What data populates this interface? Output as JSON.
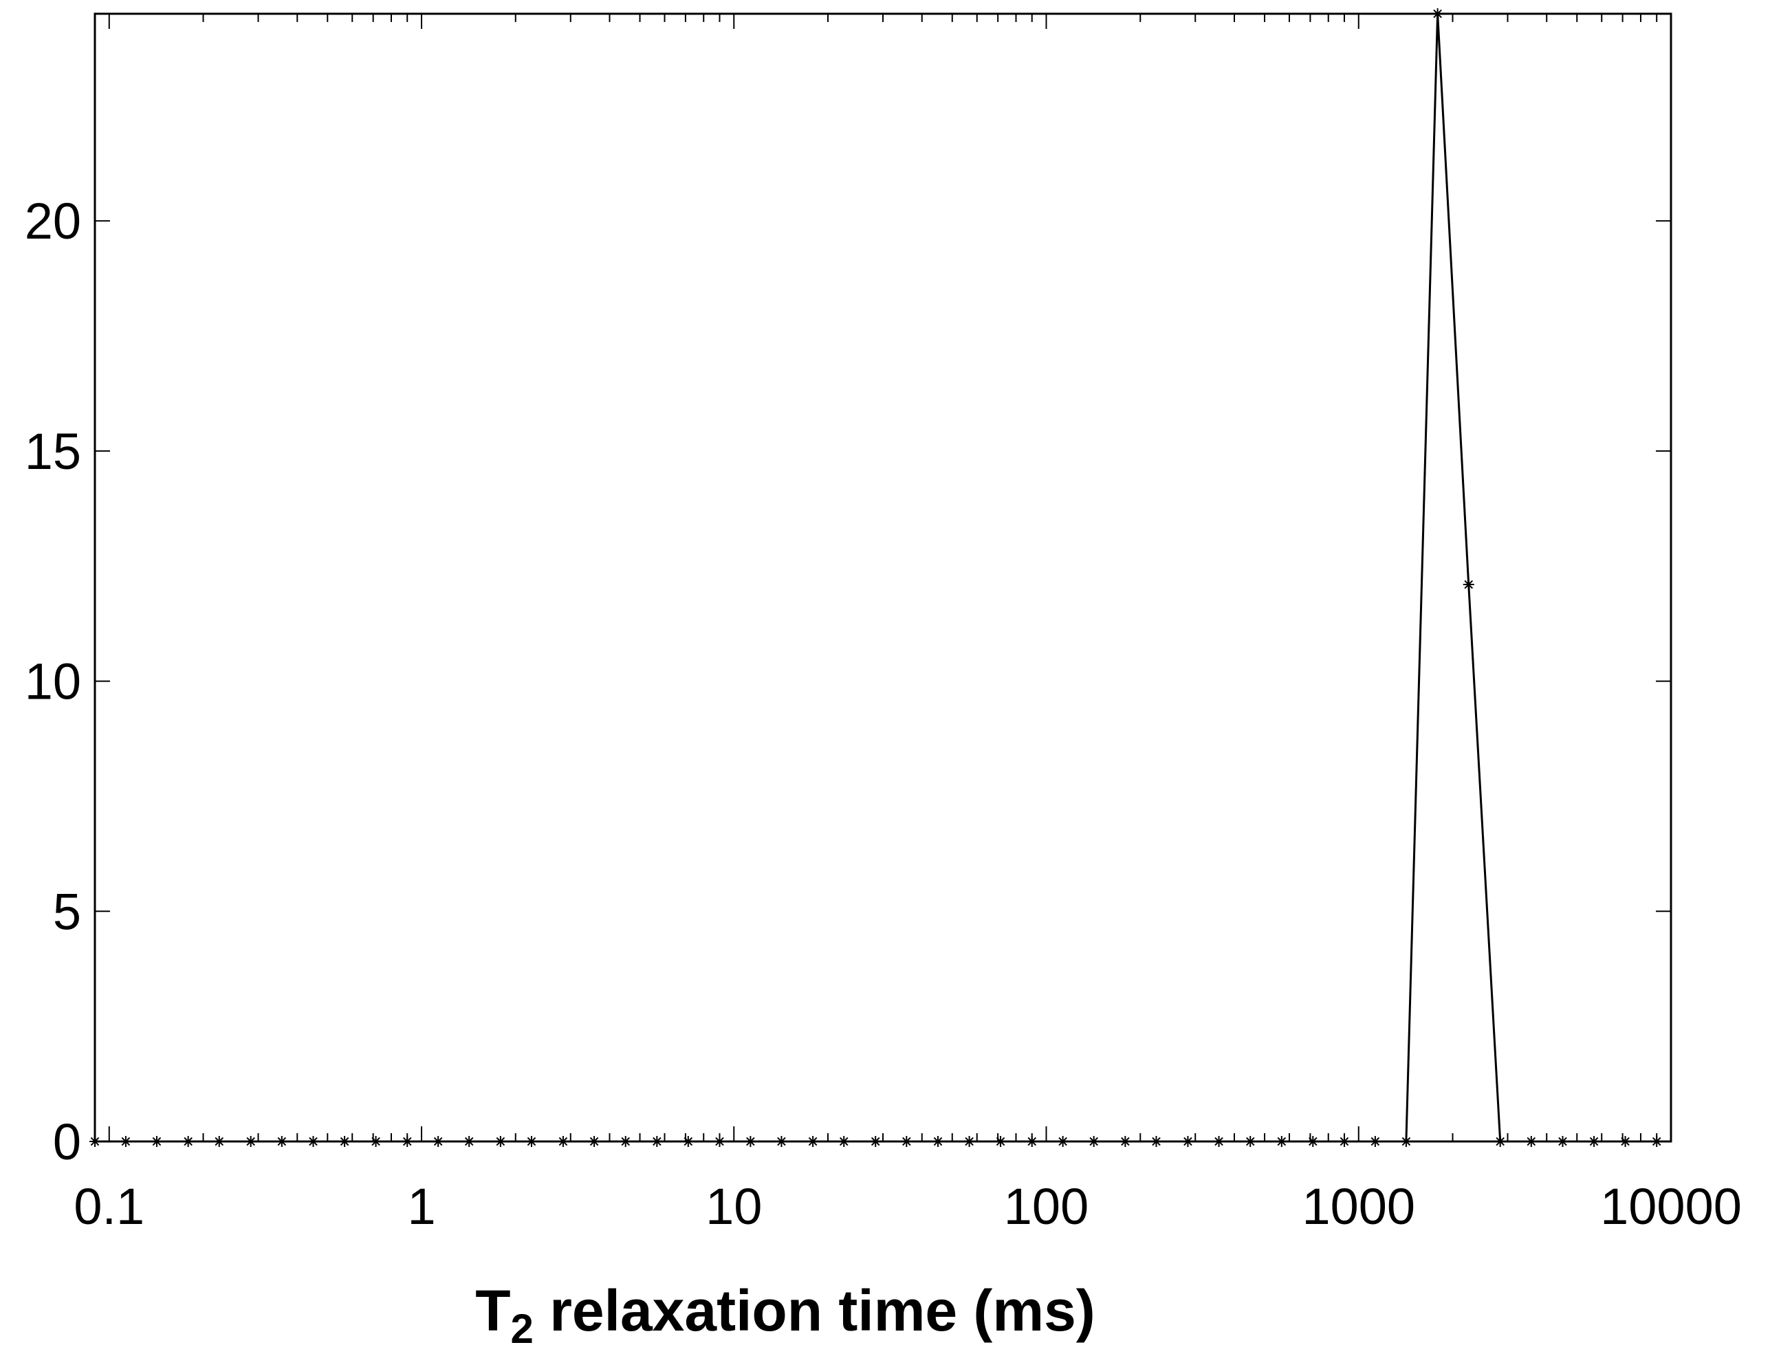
{
  "chart_data": {
    "type": "line",
    "title": "",
    "xlabel": {
      "main": "T",
      "subscript": "2",
      "rest": " relaxation time (ms)"
    },
    "ylabel": "",
    "x_scale": "log",
    "xlim": [
      0.09,
      10000
    ],
    "ylim": [
      0,
      24.5
    ],
    "grid": false,
    "x_ticks": [
      0.1,
      1,
      10,
      100,
      1000,
      10000
    ],
    "x_tick_labels": [
      "0.1",
      "1",
      "10",
      "100",
      "1000",
      "10000"
    ],
    "y_ticks": [
      0,
      5,
      10,
      15,
      20
    ],
    "y_tick_labels": [
      "0",
      "5",
      "10",
      "15",
      "20"
    ],
    "series": [
      {
        "marker": "asterisk",
        "color": "#000000",
        "x": [
          0.09,
          0.113,
          0.142,
          0.179,
          0.225,
          0.284,
          0.357,
          0.45,
          0.567,
          0.714,
          0.9,
          1.13,
          1.42,
          1.79,
          2.25,
          2.84,
          3.57,
          4.5,
          5.67,
          7.14,
          9.0,
          11.3,
          14.2,
          17.9,
          22.5,
          28.4,
          35.7,
          45.0,
          56.7,
          71.4,
          90,
          113,
          142,
          179,
          225,
          284,
          357,
          450,
          567,
          714,
          900,
          1130,
          1420,
          1790,
          2250,
          2840,
          3570,
          4500,
          5670,
          7140,
          9000
        ],
        "y": [
          0,
          0,
          0,
          0,
          0,
          0,
          0,
          0,
          0,
          0,
          0,
          0,
          0,
          0,
          0,
          0,
          0,
          0,
          0,
          0,
          0,
          0,
          0,
          0,
          0,
          0,
          0,
          0,
          0,
          0,
          0,
          0,
          0,
          0,
          0,
          0,
          0,
          0,
          0,
          0,
          0,
          0,
          0,
          24.5,
          12.1,
          0,
          0,
          0,
          0,
          0,
          0
        ]
      }
    ]
  }
}
